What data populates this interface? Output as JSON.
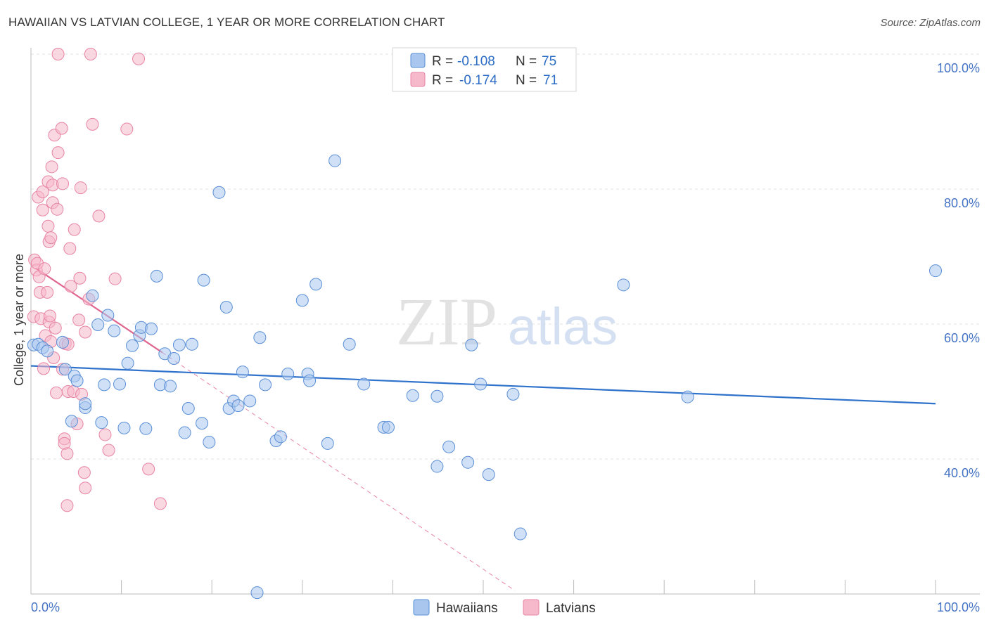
{
  "title": "HAWAIIAN VS LATVIAN COLLEGE, 1 YEAR OR MORE CORRELATION CHART",
  "source": "Source: ZipAtlas.com",
  "colors": {
    "hawaiians_fill": "#a9c6ef",
    "hawaiians_stroke": "#5a8fd6",
    "hawaiians_line": "#2f72cc",
    "latvians_fill": "#f6b8cb",
    "latvians_stroke": "#e884a4",
    "latvians_line": "#e06690",
    "tick_text": "#4472c4",
    "grid": "#e3e3e3"
  },
  "legend": {
    "r_label": "R =",
    "n_label": "N =",
    "rows": [
      {
        "r": "-0.108",
        "n": "75",
        "series": "Hawaiians"
      },
      {
        "r": "-0.174",
        "n": "71",
        "series": "Latvians"
      }
    ]
  },
  "watermark": {
    "zip": "ZIP",
    "atlas": "atlas"
  },
  "chart_data": {
    "type": "scatter",
    "title": "HAWAIIAN VS LATVIAN COLLEGE, 1 YEAR OR MORE CORRELATION CHART",
    "xlabel": "",
    "ylabel": "College, 1 year or more",
    "xlim": [
      0,
      100
    ],
    "ylim": [
      20,
      100
    ],
    "x_tick_labels": [
      "0.0%",
      "100.0%"
    ],
    "y_ticks": [
      40,
      60,
      80,
      100
    ],
    "y_tick_labels": [
      "40.0%",
      "60.0%",
      "80.0%",
      "100.0%"
    ],
    "grid": true,
    "series": [
      {
        "name": "Hawaiians",
        "r": -0.108,
        "n": 75,
        "trend": {
          "x": [
            0,
            100
          ],
          "y": [
            53.8,
            48.2
          ]
        },
        "points": [
          [
            0.3,
            56.9
          ],
          [
            0.8,
            57.0
          ],
          [
            1.3,
            56.5
          ],
          [
            1.8,
            56.0
          ],
          [
            3.5,
            57.3
          ],
          [
            3.8,
            53.3
          ],
          [
            4.5,
            45.6
          ],
          [
            4.8,
            52.3
          ],
          [
            5.1,
            51.6
          ],
          [
            6.0,
            47.6
          ],
          [
            6.0,
            48.2
          ],
          [
            6.8,
            64.2
          ],
          [
            7.4,
            59.9
          ],
          [
            7.8,
            45.4
          ],
          [
            8.1,
            51.0
          ],
          [
            8.5,
            61.3
          ],
          [
            9.2,
            59.0
          ],
          [
            9.8,
            51.1
          ],
          [
            10.3,
            44.6
          ],
          [
            10.7,
            54.2
          ],
          [
            11.2,
            56.8
          ],
          [
            12.0,
            58.3
          ],
          [
            12.2,
            59.5
          ],
          [
            12.7,
            44.5
          ],
          [
            13.3,
            59.3
          ],
          [
            13.9,
            67.1
          ],
          [
            14.3,
            51.0
          ],
          [
            14.8,
            55.6
          ],
          [
            15.4,
            50.8
          ],
          [
            15.8,
            54.9
          ],
          [
            16.4,
            56.9
          ],
          [
            17.0,
            43.9
          ],
          [
            17.4,
            47.5
          ],
          [
            17.8,
            57.0
          ],
          [
            18.9,
            45.3
          ],
          [
            19.1,
            66.5
          ],
          [
            19.7,
            42.5
          ],
          [
            20.8,
            79.5
          ],
          [
            21.6,
            62.5
          ],
          [
            21.9,
            47.5
          ],
          [
            22.4,
            48.6
          ],
          [
            22.9,
            47.9
          ],
          [
            23.4,
            52.9
          ],
          [
            24.2,
            48.6
          ],
          [
            25.0,
            20.2
          ],
          [
            25.3,
            58.0
          ],
          [
            25.9,
            51.0
          ],
          [
            27.1,
            42.7
          ],
          [
            27.6,
            43.3
          ],
          [
            28.4,
            52.6
          ],
          [
            30.0,
            63.5
          ],
          [
            30.6,
            52.6
          ],
          [
            30.8,
            51.6
          ],
          [
            31.5,
            65.9
          ],
          [
            32.8,
            42.3
          ],
          [
            33.6,
            84.2
          ],
          [
            35.2,
            57.0
          ],
          [
            36.8,
            51.1
          ],
          [
            39.0,
            44.7
          ],
          [
            39.5,
            44.7
          ],
          [
            42.2,
            49.4
          ],
          [
            44.9,
            38.9
          ],
          [
            44.9,
            49.3
          ],
          [
            46.2,
            41.8
          ],
          [
            48.3,
            39.5
          ],
          [
            48.7,
            56.9
          ],
          [
            49.7,
            51.1
          ],
          [
            50.6,
            37.7
          ],
          [
            53.3,
            49.6
          ],
          [
            54.1,
            28.9
          ],
          [
            65.5,
            65.8
          ],
          [
            72.6,
            49.2
          ],
          [
            100.0,
            67.9
          ]
        ]
      },
      {
        "name": "Latvians",
        "r": -0.174,
        "n": 71,
        "trend": {
          "x": [
            0.5,
            14.5
          ],
          "y": [
            68.3,
            55.8
          ]
        },
        "trend_ext": {
          "x": [
            14.5,
            53.5
          ],
          "y": [
            55.8,
            20.5
          ]
        },
        "points": [
          [
            0.3,
            61.1
          ],
          [
            0.4,
            69.5
          ],
          [
            0.6,
            68.0
          ],
          [
            0.7,
            69.0
          ],
          [
            0.8,
            78.8
          ],
          [
            0.9,
            67.0
          ],
          [
            1.0,
            64.7
          ],
          [
            1.1,
            60.8
          ],
          [
            1.3,
            79.6
          ],
          [
            1.3,
            76.9
          ],
          [
            1.4,
            53.4
          ],
          [
            1.5,
            68.2
          ],
          [
            1.6,
            58.3
          ],
          [
            1.8,
            64.7
          ],
          [
            1.9,
            81.1
          ],
          [
            1.9,
            74.5
          ],
          [
            2.0,
            72.2
          ],
          [
            2.0,
            60.3
          ],
          [
            2.1,
            61.2
          ],
          [
            2.2,
            57.4
          ],
          [
            2.2,
            72.8
          ],
          [
            2.3,
            83.3
          ],
          [
            2.4,
            78.0
          ],
          [
            2.4,
            80.6
          ],
          [
            2.5,
            55.0
          ],
          [
            2.6,
            88.0
          ],
          [
            2.7,
            59.4
          ],
          [
            2.8,
            49.8
          ],
          [
            2.9,
            77.0
          ],
          [
            3.0,
            85.4
          ],
          [
            3.0,
            100.0
          ],
          [
            3.4,
            89.0
          ],
          [
            3.5,
            53.3
          ],
          [
            3.5,
            80.8
          ],
          [
            3.7,
            43.0
          ],
          [
            3.7,
            42.3
          ],
          [
            3.8,
            57.1
          ],
          [
            4.0,
            40.8
          ],
          [
            4.0,
            33.1
          ],
          [
            4.1,
            57.0
          ],
          [
            4.1,
            50.0
          ],
          [
            4.3,
            71.2
          ],
          [
            4.4,
            65.6
          ],
          [
            4.7,
            50.0
          ],
          [
            4.8,
            74.0
          ],
          [
            5.1,
            45.2
          ],
          [
            5.3,
            60.6
          ],
          [
            5.4,
            66.8
          ],
          [
            5.5,
            80.2
          ],
          [
            5.6,
            49.6
          ],
          [
            5.9,
            38.0
          ],
          [
            6.0,
            35.7
          ],
          [
            6.0,
            58.8
          ],
          [
            6.4,
            63.7
          ],
          [
            6.6,
            100.0
          ],
          [
            6.8,
            89.6
          ],
          [
            7.5,
            76.0
          ],
          [
            8.2,
            43.6
          ],
          [
            8.6,
            41.3
          ],
          [
            9.3,
            66.7
          ],
          [
            10.6,
            88.9
          ],
          [
            11.9,
            99.3
          ],
          [
            13.0,
            38.5
          ],
          [
            14.3,
            33.4
          ]
        ]
      }
    ]
  }
}
